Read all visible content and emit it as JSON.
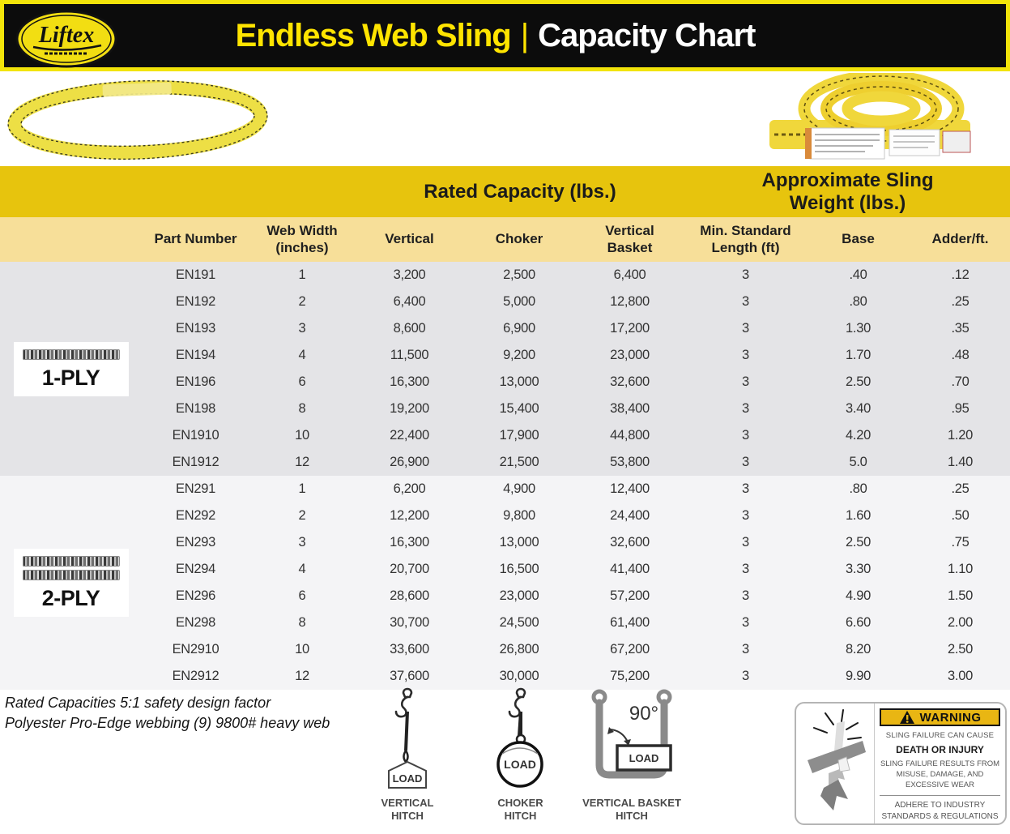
{
  "header": {
    "brand": "Liftex",
    "title_left": "Endless Web Sling",
    "separator": "|",
    "title_right": "Capacity Chart"
  },
  "table": {
    "group_headers": {
      "rated_capacity": "Rated Capacity (lbs.)",
      "approx_weight": "Approximate Sling\nWeight (lbs.)"
    },
    "columns": [
      "Part Number",
      "Web Width\n(inches)",
      "Vertical",
      "Choker",
      "Vertical\nBasket",
      "Min. Standard\nLength (ft)",
      "Base",
      "Adder/ft."
    ],
    "sections": [
      {
        "ply": "1-PLY",
        "rows": [
          [
            "EN191",
            "1",
            "3,200",
            "2,500",
            "6,400",
            "3",
            ".40",
            ".12"
          ],
          [
            "EN192",
            "2",
            "6,400",
            "5,000",
            "12,800",
            "3",
            ".80",
            ".25"
          ],
          [
            "EN193",
            "3",
            "8,600",
            "6,900",
            "17,200",
            "3",
            "1.30",
            ".35"
          ],
          [
            "EN194",
            "4",
            "11,500",
            "9,200",
            "23,000",
            "3",
            "1.70",
            ".48"
          ],
          [
            "EN196",
            "6",
            "16,300",
            "13,000",
            "32,600",
            "3",
            "2.50",
            ".70"
          ],
          [
            "EN198",
            "8",
            "19,200",
            "15,400",
            "38,400",
            "3",
            "3.40",
            ".95"
          ],
          [
            "EN1910",
            "10",
            "22,400",
            "17,900",
            "44,800",
            "3",
            "4.20",
            "1.20"
          ],
          [
            "EN1912",
            "12",
            "26,900",
            "21,500",
            "53,800",
            "3",
            "5.0",
            "1.40"
          ]
        ]
      },
      {
        "ply": "2-PLY",
        "rows": [
          [
            "EN291",
            "1",
            "6,200",
            "4,900",
            "12,400",
            "3",
            ".80",
            ".25"
          ],
          [
            "EN292",
            "2",
            "12,200",
            "9,800",
            "24,400",
            "3",
            "1.60",
            ".50"
          ],
          [
            "EN293",
            "3",
            "16,300",
            "13,000",
            "32,600",
            "3",
            "2.50",
            ".75"
          ],
          [
            "EN294",
            "4",
            "20,700",
            "16,500",
            "41,400",
            "3",
            "3.30",
            "1.10"
          ],
          [
            "EN296",
            "6",
            "28,600",
            "23,000",
            "57,200",
            "3",
            "4.90",
            "1.50"
          ],
          [
            "EN298",
            "8",
            "30,700",
            "24,500",
            "61,400",
            "3",
            "6.60",
            "2.00"
          ],
          [
            "EN2910",
            "10",
            "33,600",
            "26,800",
            "67,200",
            "3",
            "8.20",
            "2.50"
          ],
          [
            "EN2912",
            "12",
            "37,600",
            "30,000",
            "75,200",
            "3",
            "9.90",
            "3.00"
          ]
        ]
      }
    ]
  },
  "notes": [
    "Rated Capacities 5:1 safety design factor",
    "Polyester Pro-Edge webbing (9) 9800# heavy web"
  ],
  "hitches": [
    {
      "label": "VERTICAL\nHITCH",
      "load": "LOAD"
    },
    {
      "label": "CHOKER\nHITCH",
      "load": "LOAD"
    },
    {
      "label": "VERTICAL BASKET\nHITCH",
      "load": "LOAD",
      "angle": "90°"
    }
  ],
  "warning": {
    "title": "WARNING",
    "line1": "SLING FAILURE CAN CAUSE",
    "line2": "DEATH OR INJURY",
    "line3": "SLING FAILURE RESULTS FROM MISUSE, DAMAGE, AND EXCESSIVE WEAR",
    "line4": "ADHERE TO INDUSTRY STANDARDS & REGULATIONS"
  },
  "colors": {
    "gold": "#E7C40D",
    "light_yellow": "#F7DF99",
    "bar_black": "#0C0C0C",
    "accent_yellow": "#F2E40A",
    "title_yellow": "#FFE400",
    "gray_row": "#E4E4E7",
    "light_row": "#F4F4F6",
    "warning_yellow": "#E9B613"
  }
}
